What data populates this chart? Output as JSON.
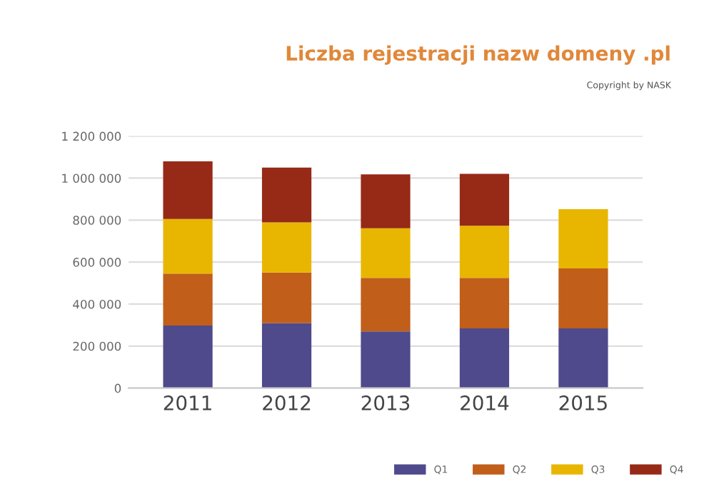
{
  "chart_data": {
    "type": "bar",
    "title": "Liczba rejestracji nazw domeny .pl",
    "annotations": [
      "Copyright by NASK"
    ],
    "categories": [
      "2011",
      "2012",
      "2013",
      "2014",
      "2015"
    ],
    "stacked": true,
    "series": [
      {
        "name": "Q1",
        "color": "#4e4a8c",
        "values": [
          298000,
          309000,
          270000,
          284000,
          284000
        ]
      },
      {
        "name": "Q2",
        "color": "#c05e1a",
        "values": [
          247000,
          241000,
          255000,
          241000,
          286000
        ]
      },
      {
        "name": "Q3",
        "color": "#e8b600",
        "values": [
          260000,
          239000,
          236000,
          248000,
          282000
        ]
      },
      {
        "name": "Q4",
        "color": "#962a17",
        "values": [
          275000,
          261000,
          257000,
          247000,
          null
        ]
      }
    ],
    "ylim": [
      0,
      1200000
    ],
    "yticks": [
      {
        "value": 0,
        "label": "0"
      },
      {
        "value": 200000,
        "label": "200 000"
      },
      {
        "value": 400000,
        "label": "400 000"
      },
      {
        "value": 600000,
        "label": "600 000"
      },
      {
        "value": 800000,
        "label": "800 000"
      },
      {
        "value": 1000000,
        "label": "1 000 000"
      },
      {
        "value": 1200000,
        "label": "1 200 000"
      }
    ],
    "grid": "y",
    "legend": "bottom right"
  }
}
